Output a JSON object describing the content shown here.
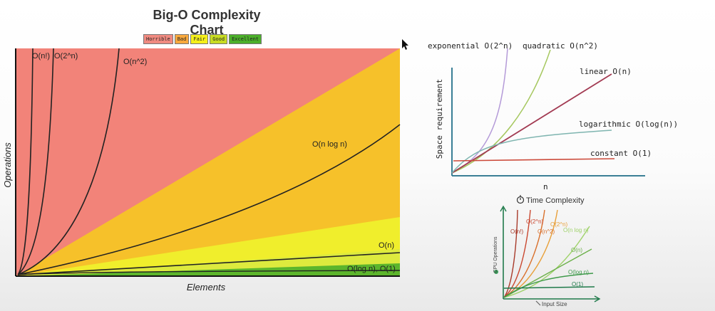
{
  "main_chart": {
    "title": "Big-O Complexity Chart",
    "xlabel": "Elements",
    "ylabel": "Operations",
    "legend": [
      {
        "label": "Horrible",
        "color": "#f08a80"
      },
      {
        "label": "Bad",
        "color": "#f9a93d"
      },
      {
        "label": "Fair",
        "color": "#f5ef1a"
      },
      {
        "label": "Good",
        "color": "#c8dc22"
      },
      {
        "label": "Excellent",
        "color": "#4caf2a"
      }
    ],
    "zone_colors": {
      "horrible": "#f28379",
      "bad": "#f6c12a",
      "fair": "#f0ee2c",
      "good": "#ddea3e",
      "excellent": "#5cb52c"
    },
    "curve_labels": {
      "factorial": "O(n!)",
      "exponential": "O(2^n)",
      "quadratic": "O(n^2)",
      "nlogn": "O(n log n)",
      "linear": "O(n)",
      "log_const": "O(log n), O(1)"
    }
  },
  "chart_data": [
    {
      "type": "area",
      "title": "Big-O Complexity Chart",
      "xlabel": "Elements",
      "ylabel": "Operations",
      "series": [
        {
          "name": "O(n!)",
          "values": "steepest curve"
        },
        {
          "name": "O(2^n)",
          "values": "exponential curve"
        },
        {
          "name": "O(n^2)",
          "values": "quadratic curve"
        },
        {
          "name": "O(n log n)",
          "values": "n log n curve"
        },
        {
          "name": "O(n)",
          "values": "linear"
        },
        {
          "name": "O(log n), O(1)",
          "values": "near-flat"
        }
      ],
      "legend": [
        "Horrible",
        "Bad",
        "Fair",
        "Good",
        "Excellent"
      ]
    },
    {
      "type": "line",
      "xlabel": "n",
      "ylabel": "Space requirement",
      "series": [
        {
          "name": "exponential O(2^n)"
        },
        {
          "name": "quadratic O(n^2)"
        },
        {
          "name": "linear O(n)"
        },
        {
          "name": "logarithmic O(log(n))"
        },
        {
          "name": "constant O(1)"
        }
      ]
    },
    {
      "type": "line",
      "title": "Time Complexity",
      "xlabel": "Input Size",
      "ylabel": "CPU Operations",
      "series": [
        {
          "name": "O(n!)"
        },
        {
          "name": "O(2^n)"
        },
        {
          "name": "O(n^2)"
        },
        {
          "name": "O(2^n)"
        },
        {
          "name": "O(n log n)"
        },
        {
          "name": "O(n)"
        },
        {
          "name": "O(log n)"
        },
        {
          "name": "O(1)"
        }
      ]
    }
  ],
  "space_chart": {
    "ylabel": "Space requirement",
    "xlabel": "n",
    "labels": {
      "exponential": "exponential O(2^n)",
      "quadratic": "quadratic O(n^2)",
      "linear": "linear O(n)",
      "logarithmic": "logarithmic O(log(n))",
      "constant": "constant O(1)"
    },
    "colors": {
      "axis": "#3a7f96",
      "exponential": "#b49ad8",
      "quadratic": "#a6c860",
      "linear": "#a23a52",
      "logarithmic": "#7fb5b0",
      "constant": "#cc4a3a"
    }
  },
  "time_chart": {
    "title": "Time Complexity",
    "ylabel": "CPU Operations",
    "xlabel": "Input Size",
    "labels": {
      "fact": "O(n!)",
      "exp": "O(2^n)",
      "quad": "O(n^2)",
      "exp2": "O(2^n)",
      "nlogn": "O(n log n)",
      "n": "O(n)",
      "logn": "O(log n)",
      "const": "O(1)"
    },
    "colors": {
      "fact": "#a83a2a",
      "exp": "#c9462e",
      "quad": "#d9702c",
      "exp2": "#e8a03a",
      "nlogn": "#9fd26a",
      "n": "#6cb04a",
      "logn": "#3e9a4a",
      "const": "#1f7a4a"
    }
  }
}
